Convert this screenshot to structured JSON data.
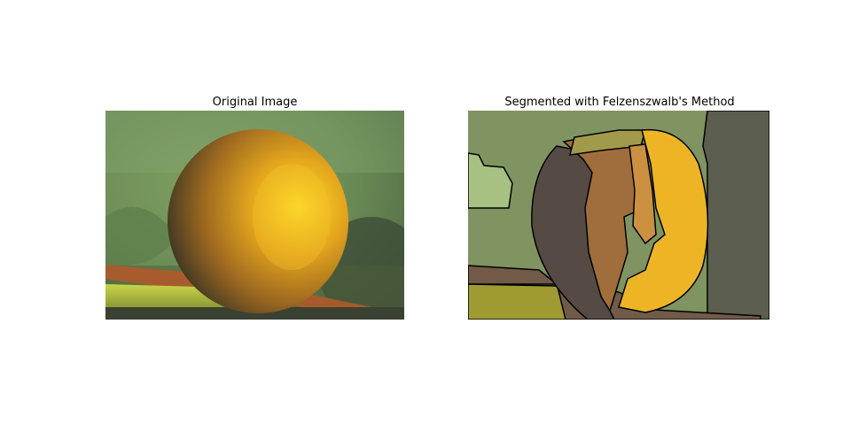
{
  "panels": [
    {
      "title": "Original Image"
    },
    {
      "title": "Segmented with Felzenszwalb's Method"
    }
  ],
  "segment_colors": {
    "background": "#7f9460",
    "light_green": "#a6c182",
    "dark_right": "#5c5e4f",
    "shadow": "#554b44",
    "orange_left": "#a06d3c",
    "orange_mid": "#cb9140",
    "orange_bright": "#edb526",
    "olive": "#a29a4b",
    "table_brown": "#725a48",
    "table_yellow": "#a09a33"
  }
}
